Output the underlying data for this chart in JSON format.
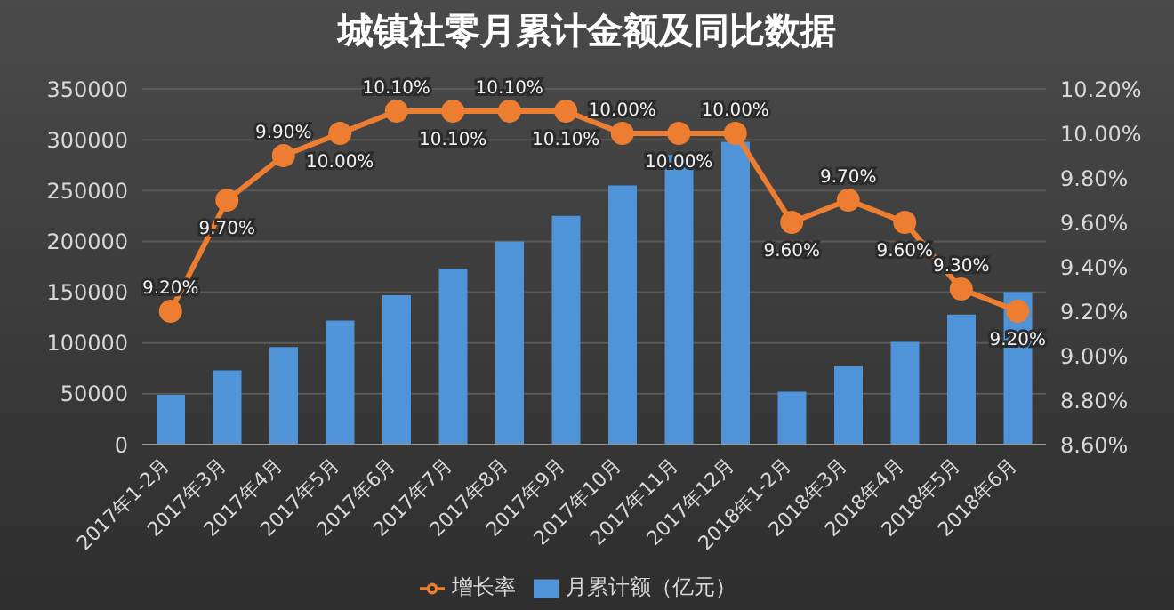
{
  "chart_data": {
    "type": "bar",
    "title": "城镇社零月累计金额及同比数据",
    "categories": [
      "2017年1-2月",
      "2017年3月",
      "2017年4月",
      "2017年5月",
      "2017年6月",
      "2017年7月",
      "2017年8月",
      "2017年9月",
      "2017年10月",
      "2017年11月",
      "2017年12月",
      "2018年1-2月",
      "2018年3月",
      "2018年4月",
      "2018年5月",
      "2018年6月"
    ],
    "series": [
      {
        "name": "月累计额（亿元）",
        "color": "#4f93d8",
        "values": [
          49000,
          73000,
          96000,
          122000,
          147000,
          173000,
          200000,
          225000,
          255000,
          285000,
          298000,
          52000,
          77000,
          101000,
          128000,
          150000
        ]
      },
      {
        "name": "增长率",
        "type": "line",
        "axis": "y2",
        "color": "#ed7d31",
        "marker": "circle",
        "values": [
          9.2,
          9.7,
          9.9,
          10.0,
          10.1,
          10.1,
          10.1,
          10.1,
          10.0,
          10.0,
          10.0,
          9.6,
          9.7,
          9.6,
          9.3,
          9.2
        ],
        "value_labels": [
          "9.20%",
          "9.70%",
          "9.90%",
          "10.00%",
          "10.10%",
          "10.10%",
          "10.10%",
          "10.10%",
          "10.00%",
          "10.00%",
          "10.00%",
          "9.60%",
          "9.70%",
          "9.60%",
          "9.30%",
          "9.20%"
        ]
      }
    ],
    "ylim": [
      0,
      350000
    ],
    "yticks": [
      0,
      50000,
      100000,
      150000,
      200000,
      250000,
      300000,
      350000
    ],
    "y2lim": [
      8.6,
      10.2
    ],
    "y2ticks": [
      {
        "value": 8.6,
        "label": "8.60%"
      },
      {
        "value": 8.8,
        "label": "8.80%"
      },
      {
        "value": 9.0,
        "label": "9.00%"
      },
      {
        "value": 9.2,
        "label": "9.20%"
      },
      {
        "value": 9.4,
        "label": "9.40%"
      },
      {
        "value": 9.6,
        "label": "9.60%"
      },
      {
        "value": 9.8,
        "label": "9.80%"
      },
      {
        "value": 10.0,
        "label": "10.00%"
      },
      {
        "value": 10.2,
        "label": "10.20%"
      }
    ],
    "grid": "y",
    "legend": "bottom"
  }
}
